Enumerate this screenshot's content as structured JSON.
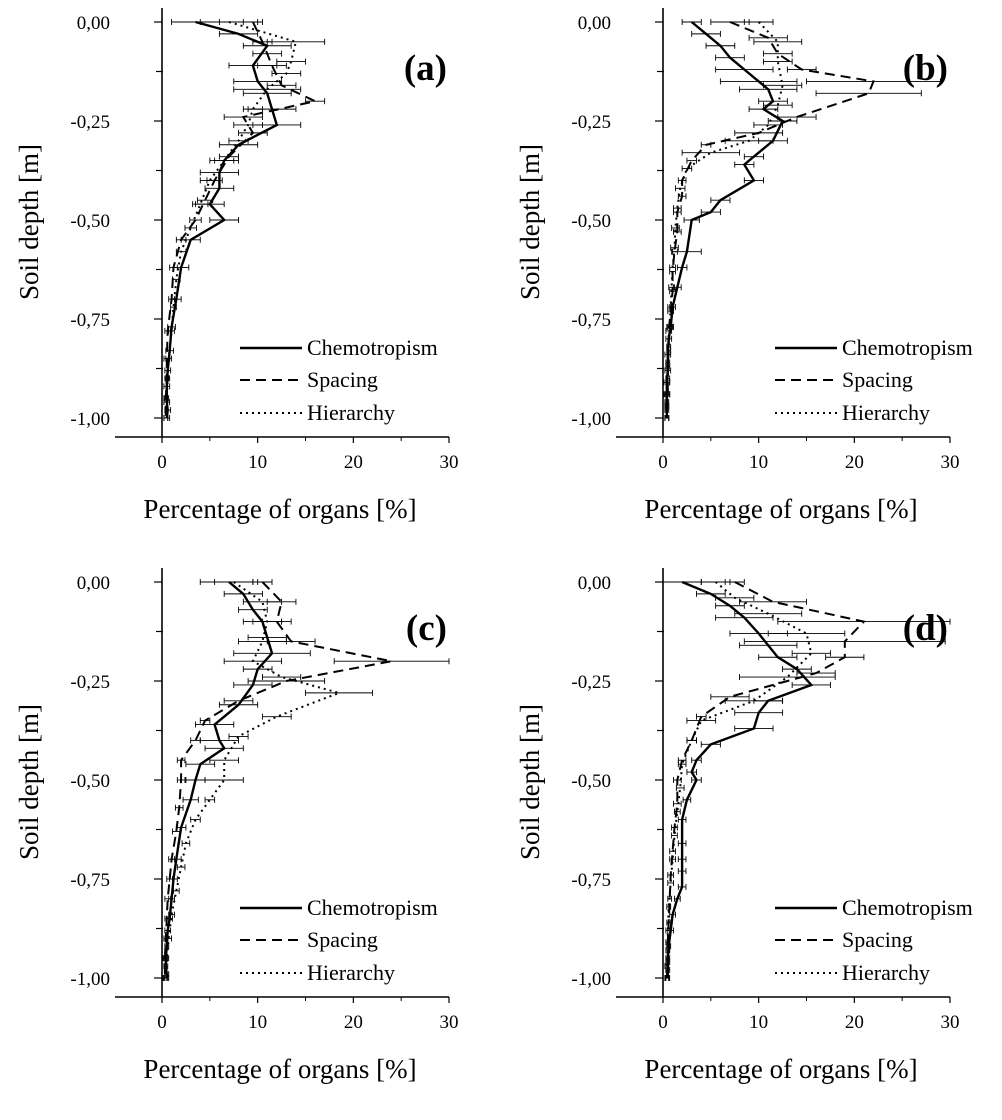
{
  "chart_data": [
    {
      "type": "line",
      "panel": "(a)",
      "xlabel": "Percentage of organs [%]",
      "ylabel": "Soil depth [m]",
      "xlim": [
        -5,
        30
      ],
      "ylim": [
        -1.05,
        0.05
      ],
      "xticks": [
        "0",
        "10",
        "20",
        "30"
      ],
      "yticks": [
        "0,00",
        "-0,25",
        "-0,50",
        "-0,75",
        "-1,00"
      ],
      "legend_position": "bottom-right",
      "series": [
        {
          "name": "Chemotropism",
          "style": "solid",
          "x": [
            3.5,
            8.0,
            11.0,
            9.5,
            10.0,
            11.0,
            11.5,
            12.0,
            8.0,
            6.5,
            6.0,
            6.0,
            5.0,
            6.5,
            3.0,
            2.0,
            1.5,
            1.0,
            0.8,
            0.6,
            0.5,
            0.5,
            0.6,
            0.5
          ],
          "y": [
            0.0,
            -0.03,
            -0.06,
            -0.11,
            -0.15,
            -0.18,
            -0.22,
            -0.26,
            -0.31,
            -0.35,
            -0.38,
            -0.42,
            -0.46,
            -0.5,
            -0.55,
            -0.62,
            -0.7,
            -0.77,
            -0.83,
            -0.88,
            -0.92,
            -0.96,
            -0.98,
            -1.0
          ],
          "xerr": [
            2.5,
            2.0,
            2.5,
            2.5,
            2.5,
            2.5,
            2.5,
            2.5,
            2.0,
            1.5,
            2.0,
            1.5,
            1.5,
            1.5,
            1.0,
            0.8,
            0.5,
            0.4,
            0.4,
            0.3,
            0.3,
            0.3,
            0.3,
            0.3
          ]
        },
        {
          "name": "Spacing",
          "style": "dashed",
          "x": [
            9.5,
            10.5,
            11.0,
            11.5,
            12.5,
            16.0,
            8.5,
            9.5,
            7.0,
            5.5,
            4.5,
            3.5,
            2.0,
            1.2,
            1.0,
            0.6,
            0.5,
            0.5,
            0.4,
            0.4
          ],
          "y": [
            0.0,
            -0.05,
            -0.08,
            -0.11,
            -0.16,
            -0.2,
            -0.24,
            -0.28,
            -0.34,
            -0.4,
            -0.45,
            -0.5,
            -0.55,
            -0.62,
            -0.7,
            -0.78,
            -0.85,
            -0.9,
            -0.95,
            -1.0
          ],
          "xerr": [
            1.0,
            1.0,
            1.5,
            1.5,
            1.5,
            1.0,
            2.0,
            1.5,
            1.0,
            0.8,
            0.8,
            0.6,
            0.5,
            0.4,
            0.3,
            0.3,
            0.3,
            0.2,
            0.2,
            0.2
          ]
        },
        {
          "name": "Hierarchy",
          "style": "dotted",
          "x": [
            7.0,
            14.0,
            13.5,
            13.0,
            11.0,
            9.5,
            9.0,
            8.0,
            6.5,
            5.0,
            4.0,
            3.0,
            2.0,
            1.5,
            1.2,
            1.0,
            0.7,
            0.6,
            0.5,
            0.4
          ],
          "y": [
            0.0,
            -0.05,
            -0.1,
            -0.13,
            -0.17,
            -0.22,
            -0.26,
            -0.3,
            -0.35,
            -0.4,
            -0.46,
            -0.52,
            -0.58,
            -0.65,
            -0.72,
            -0.78,
            -0.85,
            -0.9,
            -0.95,
            -1.0
          ],
          "xerr": [
            3.0,
            3.0,
            1.5,
            1.5,
            3.5,
            1.0,
            1.5,
            1.0,
            1.0,
            1.0,
            0.8,
            0.6,
            0.5,
            0.4,
            0.3,
            0.3,
            0.3,
            0.2,
            0.2,
            0.2
          ]
        }
      ]
    },
    {
      "type": "line",
      "panel": "(b)",
      "xlabel": "Percentage of organs [%]",
      "ylabel": "Soil depth [m]",
      "xlim": [
        -5,
        30
      ],
      "ylim": [
        -1.05,
        0.05
      ],
      "xticks": [
        "0",
        "10",
        "20",
        "30"
      ],
      "yticks": [
        "0,00",
        "-0,25",
        "-0,50",
        "-0,75",
        "-1,00"
      ],
      "legend_position": "bottom-right",
      "series": [
        {
          "name": "Chemotropism",
          "style": "solid",
          "x": [
            3.0,
            4.5,
            6.0,
            7.0,
            8.5,
            10.0,
            11.0,
            11.5,
            10.5,
            12.5,
            11.5,
            9.5,
            8.5,
            9.5,
            6.0,
            5.0,
            3.0,
            2.5,
            2.0,
            1.5,
            1.0,
            0.8,
            0.6,
            0.5,
            0.5,
            0.4,
            0.4,
            0.4,
            0.4,
            0.4
          ],
          "y": [
            0.0,
            -0.03,
            -0.06,
            -0.09,
            -0.12,
            -0.15,
            -0.17,
            -0.2,
            -0.22,
            -0.25,
            -0.3,
            -0.34,
            -0.36,
            -0.4,
            -0.45,
            -0.48,
            -0.5,
            -0.58,
            -0.62,
            -0.67,
            -0.72,
            -0.77,
            -0.8,
            -0.84,
            -0.88,
            -0.91,
            -0.94,
            -0.96,
            -0.98,
            -1.0
          ],
          "xerr": [
            1.0,
            1.5,
            1.5,
            1.5,
            3.0,
            4.0,
            3.0,
            1.5,
            1.5,
            1.5,
            1.5,
            1.0,
            1.0,
            1.0,
            1.0,
            1.0,
            0.8,
            1.5,
            0.5,
            0.4,
            0.3,
            0.3,
            0.3,
            0.3,
            0.3,
            0.3,
            0.3,
            0.2,
            0.2,
            0.2
          ]
        },
        {
          "name": "Spacing",
          "style": "dashed",
          "x": [
            7.0,
            11.0,
            12.0,
            14.5,
            22.0,
            21.5,
            14.0,
            10.0,
            4.5,
            3.0,
            2.0,
            2.0,
            1.5,
            1.5,
            1.2,
            1.0,
            1.0,
            0.8,
            0.6,
            0.6,
            0.5,
            0.5,
            0.5,
            0.4,
            0.4
          ],
          "y": [
            0.0,
            -0.04,
            -0.08,
            -0.12,
            -0.15,
            -0.18,
            -0.24,
            -0.28,
            -0.31,
            -0.35,
            -0.4,
            -0.44,
            -0.48,
            -0.53,
            -0.58,
            -0.63,
            -0.68,
            -0.73,
            -0.78,
            -0.83,
            -0.87,
            -0.91,
            -0.94,
            -0.97,
            -1.0
          ],
          "xerr": [
            2.0,
            2.0,
            1.5,
            1.5,
            7.0,
            5.5,
            2.0,
            2.5,
            0.5,
            0.5,
            0.4,
            0.4,
            0.4,
            0.4,
            0.3,
            0.3,
            0.3,
            0.3,
            0.3,
            0.2,
            0.2,
            0.2,
            0.2,
            0.2,
            0.2
          ]
        },
        {
          "name": "Hierarchy",
          "style": "dotted",
          "x": [
            10.0,
            12.0,
            12.0,
            12.5,
            12.0,
            11.0,
            9.0,
            5.0,
            2.5,
            1.8,
            1.5,
            1.3,
            1.2,
            1.0,
            0.9,
            0.8,
            0.7,
            0.6,
            0.5,
            0.5,
            0.4,
            0.4,
            0.4
          ],
          "y": [
            0.0,
            -0.05,
            -0.1,
            -0.16,
            -0.21,
            -0.26,
            -0.3,
            -0.33,
            -0.37,
            -0.42,
            -0.47,
            -0.52,
            -0.57,
            -0.62,
            -0.67,
            -0.72,
            -0.77,
            -0.82,
            -0.86,
            -0.9,
            -0.94,
            -0.97,
            -1.0
          ],
          "xerr": [
            1.5,
            2.5,
            1.5,
            2.0,
            1.5,
            1.5,
            2.5,
            3.0,
            0.5,
            0.5,
            0.4,
            0.4,
            0.4,
            0.3,
            0.3,
            0.3,
            0.3,
            0.2,
            0.2,
            0.2,
            0.2,
            0.2,
            0.2
          ]
        }
      ]
    },
    {
      "type": "line",
      "panel": "(c)",
      "xlabel": "Percentage of organs [%]",
      "ylabel": "Soil depth [m]",
      "xlim": [
        -5,
        30
      ],
      "ylim": [
        -1.05,
        0.05
      ],
      "xticks": [
        "0",
        "10",
        "20",
        "30"
      ],
      "yticks": [
        "0,00",
        "-0,25",
        "-0,50",
        "-0,75",
        "-1,00"
      ],
      "legend_position": "bottom-right",
      "series": [
        {
          "name": "Chemotropism",
          "style": "solid",
          "x": [
            7.0,
            8.5,
            9.5,
            10.5,
            11.0,
            11.5,
            10.0,
            9.5,
            8.0,
            5.5,
            6.0,
            6.5,
            4.0,
            3.5,
            3.0,
            2.0,
            1.5,
            1.2,
            1.0,
            0.8,
            0.6,
            0.5,
            0.4,
            0.4,
            0.5,
            0.5
          ],
          "y": [
            0.0,
            -0.03,
            -0.07,
            -0.1,
            -0.14,
            -0.18,
            -0.22,
            -0.26,
            -0.31,
            -0.36,
            -0.4,
            -0.42,
            -0.46,
            -0.5,
            -0.55,
            -0.62,
            -0.7,
            -0.75,
            -0.8,
            -0.85,
            -0.88,
            -0.92,
            -0.95,
            -0.97,
            -0.99,
            -1.0
          ],
          "xerr": [
            3.0,
            2.0,
            1.5,
            2.0,
            2.0,
            4.0,
            1.5,
            2.0,
            2.0,
            2.0,
            2.0,
            2.0,
            1.5,
            1.0,
            0.8,
            0.5,
            0.5,
            0.4,
            0.3,
            0.3,
            0.3,
            0.2,
            0.2,
            0.2,
            0.2,
            0.2
          ]
        },
        {
          "name": "Spacing",
          "style": "dashed",
          "x": [
            10.5,
            12.5,
            12.0,
            13.5,
            24.0,
            13.0,
            8.0,
            4.5,
            3.5,
            2.0,
            2.0,
            1.8,
            1.5,
            1.0,
            0.8,
            0.6,
            0.5,
            0.4,
            0.3,
            0.3
          ],
          "y": [
            0.0,
            -0.05,
            -0.1,
            -0.15,
            -0.2,
            -0.25,
            -0.3,
            -0.35,
            -0.4,
            -0.45,
            -0.5,
            -0.57,
            -0.63,
            -0.7,
            -0.75,
            -0.8,
            -0.85,
            -0.9,
            -0.95,
            -1.0
          ],
          "xerr": [
            1.0,
            1.5,
            1.5,
            2.5,
            6.0,
            4.0,
            1.5,
            0.5,
            0.5,
            0.4,
            0.4,
            0.4,
            0.4,
            0.3,
            0.3,
            0.3,
            0.2,
            0.2,
            0.2,
            0.2
          ]
        },
        {
          "name": "Hierarchy",
          "style": "dotted",
          "x": [
            7.5,
            10.5,
            11.0,
            10.5,
            9.5,
            12.5,
            18.5,
            12.0,
            8.0,
            6.5,
            6.5,
            5.0,
            3.5,
            2.5,
            2.0,
            1.5,
            1.0,
            0.7,
            0.5,
            0.4
          ],
          "y": [
            0.0,
            -0.05,
            -0.1,
            -0.15,
            -0.2,
            -0.24,
            -0.28,
            -0.34,
            -0.39,
            -0.45,
            -0.5,
            -0.55,
            -0.6,
            -0.66,
            -0.72,
            -0.78,
            -0.84,
            -0.9,
            -0.95,
            -1.0
          ],
          "xerr": [
            2.0,
            2.0,
            1.5,
            2.5,
            3.0,
            2.0,
            3.5,
            1.5,
            1.0,
            1.5,
            2.0,
            0.5,
            0.5,
            0.4,
            0.4,
            0.3,
            0.3,
            0.3,
            0.2,
            0.2
          ]
        }
      ]
    },
    {
      "type": "line",
      "panel": "(d)",
      "xlabel": "Percentage of organs [%]",
      "ylabel": "Soil depth [m]",
      "xlim": [
        -5,
        30
      ],
      "ylim": [
        -1.05,
        0.05
      ],
      "xticks": [
        "0",
        "10",
        "20",
        "30"
      ],
      "yticks": [
        "0,00",
        "-0,25",
        "-0,50",
        "-0,75",
        "-1,00"
      ],
      "legend_position": "bottom-right",
      "series": [
        {
          "name": "Chemotropism",
          "style": "solid",
          "x": [
            2.0,
            5.0,
            7.0,
            8.5,
            10.0,
            11.0,
            12.0,
            14.0,
            15.5,
            11.0,
            10.0,
            9.5,
            5.0,
            3.5,
            3.0,
            3.5,
            2.5,
            2.0,
            2.0,
            2.0,
            2.0,
            2.0,
            1.5,
            1.0,
            0.8,
            0.6,
            0.5,
            0.5,
            0.5
          ],
          "y": [
            0.0,
            -0.03,
            -0.06,
            -0.09,
            -0.13,
            -0.16,
            -0.19,
            -0.22,
            -0.26,
            -0.3,
            -0.33,
            -0.37,
            -0.41,
            -0.45,
            -0.48,
            -0.5,
            -0.55,
            -0.6,
            -0.66,
            -0.7,
            -0.73,
            -0.77,
            -0.8,
            -0.84,
            -0.88,
            -0.92,
            -0.95,
            -0.98,
            -1.0
          ],
          "xerr": [
            2.0,
            1.5,
            1.5,
            3.0,
            3.0,
            3.0,
            2.0,
            1.5,
            2.0,
            1.5,
            2.5,
            2.0,
            1.0,
            0.5,
            0.5,
            0.5,
            0.4,
            0.4,
            0.4,
            0.4,
            0.4,
            0.4,
            0.3,
            0.3,
            0.3,
            0.2,
            0.2,
            0.2,
            0.2
          ]
        },
        {
          "name": "Spacing",
          "style": "dashed",
          "x": [
            7.5,
            11.5,
            21.0,
            19.0,
            19.0,
            16.0,
            7.0,
            4.0,
            3.0,
            2.0,
            1.5,
            1.5,
            1.2,
            1.0,
            0.8,
            0.7,
            0.6,
            0.5,
            0.5,
            0.4
          ],
          "y": [
            0.0,
            -0.05,
            -0.1,
            -0.15,
            -0.19,
            -0.23,
            -0.29,
            -0.34,
            -0.4,
            -0.45,
            -0.5,
            -0.56,
            -0.62,
            -0.68,
            -0.74,
            -0.8,
            -0.86,
            -0.91,
            -0.96,
            -1.0
          ],
          "xerr": [
            1.0,
            3.5,
            9.0,
            10.5,
            2.0,
            2.0,
            2.0,
            0.5,
            0.5,
            0.4,
            0.4,
            0.4,
            0.3,
            0.3,
            0.3,
            0.2,
            0.2,
            0.2,
            0.2,
            0.2
          ]
        },
        {
          "name": "Hierarchy",
          "style": "dotted",
          "x": [
            5.5,
            7.5,
            11.0,
            15.0,
            15.5,
            13.0,
            9.5,
            4.0,
            3.0,
            2.0,
            1.8,
            1.5,
            1.2,
            1.0,
            0.8,
            0.6,
            0.5,
            0.5,
            0.4,
            0.4
          ],
          "y": [
            0.0,
            -0.04,
            -0.08,
            -0.13,
            -0.18,
            -0.24,
            -0.3,
            -0.35,
            -0.4,
            -0.46,
            -0.52,
            -0.58,
            -0.64,
            -0.7,
            -0.76,
            -0.82,
            -0.88,
            -0.93,
            -0.97,
            -1.0
          ],
          "xerr": [
            1.5,
            2.0,
            3.5,
            4.0,
            2.0,
            5.0,
            3.0,
            1.5,
            0.5,
            0.4,
            0.4,
            0.3,
            0.3,
            0.3,
            0.3,
            0.2,
            0.2,
            0.2,
            0.2,
            0.2
          ]
        }
      ]
    }
  ]
}
